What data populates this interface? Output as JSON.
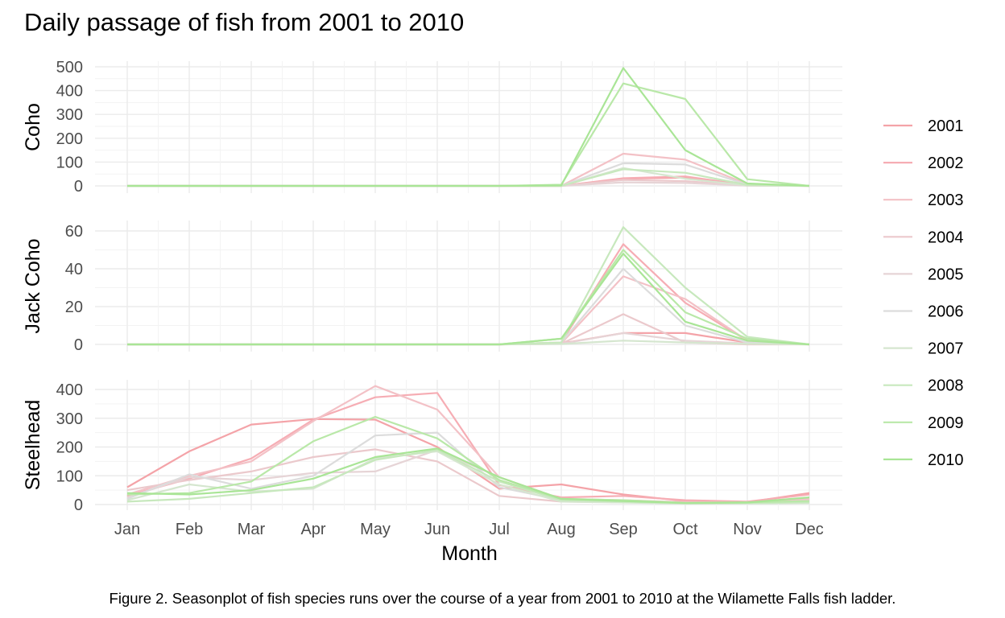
{
  "title": "Daily passage of fish from 2001 to 2010",
  "caption": "Figure 2. Seasonplot of  fish species runs over the course of a year from 2001 to 2010 at the Wilamette Falls fish ladder.",
  "chart_data": {
    "type": "line",
    "title": "Daily passage of fish from 2001 to 2010",
    "xlabel": "Month",
    "categories": [
      "Jan",
      "Feb",
      "Mar",
      "Apr",
      "May",
      "Jun",
      "Jul",
      "Aug",
      "Sep",
      "Oct",
      "Nov",
      "Dec"
    ],
    "grid": true,
    "legend_position": "right",
    "legend": [
      "2001",
      "2002",
      "2003",
      "2004",
      "2005",
      "2006",
      "2007",
      "2008",
      "2009",
      "2010"
    ],
    "colors": [
      "#f4a3a8",
      "#f6adb4",
      "#f3c1c6",
      "#ebc9cc",
      "#e6d4d6",
      "#dcdcdc",
      "#d5e6cf",
      "#c7e8bd",
      "#b9e8a8",
      "#a9e596"
    ],
    "panels": [
      {
        "name": "Coho",
        "ylabel": "Coho",
        "ylim": [
          0,
          520
        ],
        "yticks": [
          0,
          100,
          200,
          300,
          400,
          500
        ],
        "series": [
          {
            "year": "2001",
            "values": [
              0,
              0,
              0,
              0,
              0,
              0,
              0,
              0,
              30,
              35,
              2,
              0
            ]
          },
          {
            "year": "2002",
            "values": [
              0,
              0,
              0,
              0,
              0,
              0,
              0,
              0,
              32,
              40,
              3,
              0
            ]
          },
          {
            "year": "2003",
            "values": [
              0,
              0,
              0,
              0,
              0,
              0,
              0,
              0,
              135,
              110,
              8,
              0
            ]
          },
          {
            "year": "2004",
            "values": [
              0,
              0,
              0,
              0,
              0,
              0,
              0,
              0,
              25,
              20,
              1,
              0
            ]
          },
          {
            "year": "2005",
            "values": [
              0,
              0,
              0,
              0,
              0,
              0,
              0,
              0,
              15,
              12,
              1,
              0
            ]
          },
          {
            "year": "2006",
            "values": [
              0,
              0,
              0,
              0,
              0,
              0,
              0,
              0,
              95,
              90,
              5,
              0
            ]
          },
          {
            "year": "2007",
            "values": [
              0,
              0,
              0,
              0,
              0,
              0,
              0,
              0,
              75,
              30,
              2,
              0
            ]
          },
          {
            "year": "2008",
            "values": [
              0,
              0,
              0,
              0,
              0,
              0,
              0,
              0,
              70,
              55,
              4,
              0
            ]
          },
          {
            "year": "2009",
            "values": [
              0,
              0,
              0,
              0,
              0,
              0,
              0,
              5,
              430,
              365,
              28,
              0
            ]
          },
          {
            "year": "2010",
            "values": [
              0,
              0,
              0,
              0,
              0,
              0,
              0,
              2,
              495,
              150,
              10,
              0
            ]
          }
        ]
      },
      {
        "name": "Jack Coho",
        "ylabel": "Jack Coho",
        "ylim": [
          0,
          66
        ],
        "yticks": [
          0,
          20,
          40,
          60
        ],
        "series": [
          {
            "year": "2001",
            "values": [
              0,
              0,
              0,
              0,
              0,
              0,
              0,
              0.5,
              6,
              6,
              1,
              0
            ]
          },
          {
            "year": "2002",
            "values": [
              0,
              0,
              0,
              0,
              0,
              0,
              0,
              1,
              53,
              22,
              2,
              0
            ]
          },
          {
            "year": "2003",
            "values": [
              0,
              0,
              0,
              0,
              0,
              0,
              0,
              0.5,
              36,
              24,
              2,
              0
            ]
          },
          {
            "year": "2004",
            "values": [
              0,
              0,
              0,
              0,
              0,
              0,
              0,
              0.3,
              16,
              1,
              0,
              0
            ]
          },
          {
            "year": "2005",
            "values": [
              0,
              0,
              0,
              0,
              0,
              0,
              0,
              0.3,
              6,
              2,
              0.5,
              0
            ]
          },
          {
            "year": "2006",
            "values": [
              0,
              0,
              0,
              0,
              0,
              0,
              0,
              1,
              40,
              10,
              1,
              0
            ]
          },
          {
            "year": "2007",
            "values": [
              0,
              0,
              0,
              0,
              0,
              0,
              0,
              0.2,
              2,
              1,
              0.3,
              0
            ]
          },
          {
            "year": "2008",
            "values": [
              0,
              0,
              0,
              0,
              0,
              0,
              0,
              1,
              62,
              30,
              4,
              0
            ]
          },
          {
            "year": "2009",
            "values": [
              0,
              0,
              0,
              0,
              0,
              0,
              0,
              3,
              50,
              17,
              3,
              0
            ]
          },
          {
            "year": "2010",
            "values": [
              0,
              0,
              0,
              0,
              0,
              0,
              0,
              3,
              48,
              12,
              2,
              0
            ]
          }
        ]
      },
      {
        "name": "Steelhead",
        "ylabel": "Steelhead",
        "ylim": [
          0,
          440
        ],
        "yticks": [
          0,
          100,
          200,
          300,
          400
        ],
        "series": [
          {
            "year": "2001",
            "values": [
              60,
              185,
              278,
              297,
              295,
              200,
              55,
              70,
              35,
              12,
              8,
              40
            ]
          },
          {
            "year": "2002",
            "values": [
              30,
              90,
              160,
              295,
              373,
              388,
              68,
              25,
              30,
              15,
              10,
              35
            ]
          },
          {
            "year": "2003",
            "values": [
              35,
              100,
              150,
              290,
              412,
              330,
              95,
              20,
              15,
              8,
              6,
              20
            ]
          },
          {
            "year": "2004",
            "values": [
              50,
              85,
              115,
              165,
              192,
              150,
              30,
              10,
              8,
              5,
              5,
              15
            ]
          },
          {
            "year": "2005",
            "values": [
              25,
              95,
              85,
              110,
              115,
              190,
              95,
              18,
              10,
              5,
              6,
              10
            ]
          },
          {
            "year": "2006",
            "values": [
              20,
              105,
              55,
              100,
              240,
              250,
              60,
              15,
              8,
              4,
              5,
              8
            ]
          },
          {
            "year": "2007",
            "values": [
              15,
              70,
              45,
              55,
              160,
              185,
              70,
              10,
              7,
              3,
              4,
              5
            ]
          },
          {
            "year": "2008",
            "values": [
              10,
              20,
              40,
              60,
              155,
              190,
              80,
              15,
              10,
              5,
              6,
              8
            ]
          },
          {
            "year": "2009",
            "values": [
              35,
              40,
              80,
              220,
              305,
              230,
              85,
              20,
              15,
              6,
              8,
              12
            ]
          },
          {
            "year": "2010",
            "values": [
              40,
              35,
              50,
              90,
              165,
              195,
              95,
              20,
              12,
              5,
              7,
              25
            ]
          }
        ]
      }
    ]
  }
}
